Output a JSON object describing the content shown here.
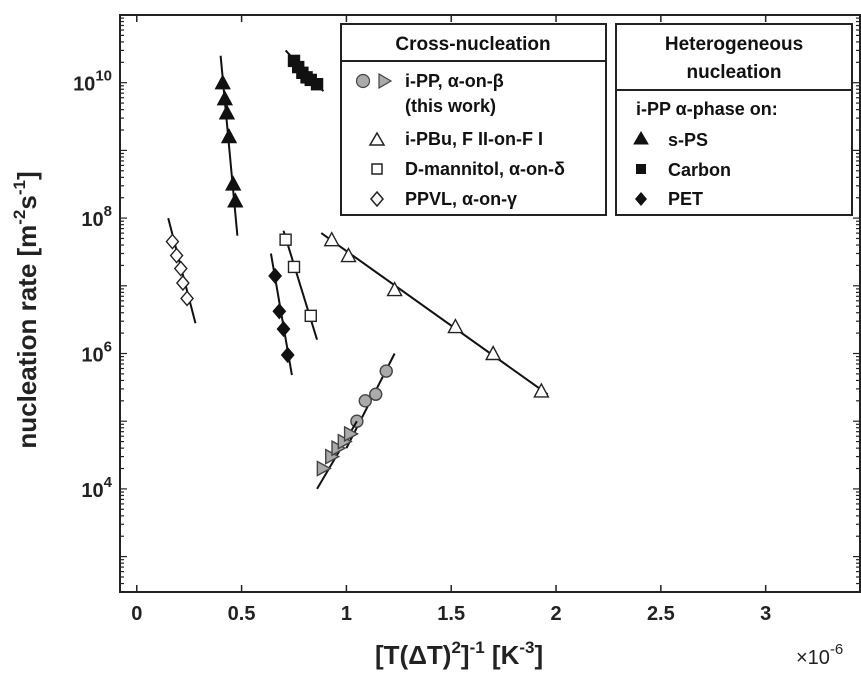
{
  "chart_data": {
    "type": "scatter",
    "x_scale": "linear",
    "y_scale": "log",
    "xlim": [
      -0.08,
      3.45
    ],
    "ylim": [
      300,
      100000000000
    ],
    "grid": false,
    "xlabel": "[T(ΔT)²]⁻¹ [K⁻³]",
    "xlabel_parts": {
      "main": "[T(ΔT)",
      "sup1": "2",
      "mid": "]",
      "sup2": "-1",
      "units": " [K",
      "sup3": "-3",
      "end": "]"
    },
    "x_multiplier": {
      "base": "×10",
      "exp": "-6"
    },
    "ylabel_parts": {
      "main": "nucleation rate [m",
      "sup1": "-2",
      "mid": "s",
      "sup2": "-1",
      "end": "]"
    },
    "x_ticks": [
      {
        "value": 0,
        "label": "0"
      },
      {
        "value": 0.5,
        "label": "0.5"
      },
      {
        "value": 1,
        "label": "1"
      },
      {
        "value": 1.5,
        "label": "1.5"
      },
      {
        "value": 2,
        "label": "2"
      },
      {
        "value": 2.5,
        "label": "2.5"
      },
      {
        "value": 3,
        "label": "3"
      }
    ],
    "y_ticks": [
      {
        "value": 10000,
        "base": "10",
        "exp": "4"
      },
      {
        "value": 1000000,
        "base": "10",
        "exp": "6"
      },
      {
        "value": 100000000,
        "base": "10",
        "exp": "8"
      },
      {
        "value": 10000000000,
        "base": "10",
        "exp": "10"
      }
    ],
    "series": [
      {
        "name": "i-PP, α-on-β (this work)",
        "group": "Cross-nucleation",
        "marker": "circle",
        "fill": "#aaaaaa",
        "x": [
          1.05,
          1.09,
          1.14,
          1.19
        ],
        "y": [
          100000,
          200000,
          250000,
          550000
        ],
        "fit": {
          "x": [
            1.0,
            1.23
          ],
          "y": [
            40000,
            1000000
          ]
        }
      },
      {
        "name": "i-PP, α-on-β (this work)",
        "group": "Cross-nucleation",
        "marker": "triangle-right",
        "fill": "#aaaaaa",
        "x": [
          0.89,
          0.93,
          0.96,
          0.99,
          1.02
        ],
        "y": [
          20000,
          30000,
          40000,
          50000,
          65000
        ],
        "fit": {
          "x": [
            0.86,
            1.05
          ],
          "y": [
            10000,
            100000
          ]
        }
      },
      {
        "name": "i-PBu, F II-on-F I",
        "group": "Cross-nucleation",
        "marker": "triangle-up",
        "fill": "#ffffff",
        "x": [
          0.93,
          1.01,
          1.23,
          1.52,
          1.7,
          1.93
        ],
        "y": [
          48000000,
          28000000,
          8800000,
          2500000,
          1000000,
          280000
        ],
        "fit": {
          "x": [
            0.88,
            1.96
          ],
          "y": [
            60000000,
            250000
          ]
        }
      },
      {
        "name": "D-mannitol, α-on-δ",
        "group": "Cross-nucleation",
        "marker": "square",
        "fill": "#ffffff",
        "x": [
          0.71,
          0.75,
          0.83
        ],
        "y": [
          48000000,
          19000000,
          3600000
        ],
        "fit": {
          "x": [
            0.7,
            0.86
          ],
          "y": [
            65000000,
            1600000
          ]
        }
      },
      {
        "name": "PPVL, α-on-γ",
        "group": "Cross-nucleation",
        "marker": "diamond",
        "fill": "#ffffff",
        "x": [
          0.17,
          0.19,
          0.21,
          0.22,
          0.24
        ],
        "y": [
          45000000,
          28000000,
          18000000,
          11000000,
          6500000
        ],
        "fit": {
          "x": [
            0.15,
            0.28
          ],
          "y": [
            100000000,
            2800000
          ]
        }
      },
      {
        "name": "s-PS",
        "group": "Heterogeneous nucleation",
        "marker": "triangle-up",
        "fill": "#111111",
        "x": [
          0.41,
          0.42,
          0.43,
          0.44,
          0.46,
          0.47
        ],
        "y": [
          10000000000,
          5800000000,
          3600000000,
          1600000000,
          320000000,
          180000000
        ],
        "fit": {
          "x": [
            0.4,
            0.48
          ],
          "y": [
            25000000000,
            55000000
          ]
        }
      },
      {
        "name": "Carbon",
        "group": "Heterogeneous nucleation",
        "marker": "square",
        "fill": "#111111",
        "x": [
          0.75,
          0.77,
          0.79,
          0.81,
          0.83,
          0.86
        ],
        "y": [
          21000000000,
          17000000000,
          14000000000,
          12000000000,
          11000000000,
          9500000000
        ],
        "fit": {
          "x": [
            0.71,
            0.89
          ],
          "y": [
            30000000000,
            7500000000
          ]
        }
      },
      {
        "name": "PET",
        "group": "Heterogeneous nucleation",
        "marker": "diamond",
        "fill": "#111111",
        "x": [
          0.66,
          0.68,
          0.7,
          0.72
        ],
        "y": [
          14000000,
          4200000,
          2300000,
          950000
        ],
        "fit": {
          "x": [
            0.64,
            0.74
          ],
          "y": [
            30000000,
            480000
          ]
        }
      }
    ],
    "legend": {
      "placement": "top-right",
      "box1": {
        "title": "Cross-nucleation",
        "entries": [
          {
            "text": "i-PP, α-on-β",
            "markers": [
              "circle-gray",
              "triangle-right-gray"
            ]
          },
          {
            "text": "(this work)",
            "markers": []
          },
          {
            "text": "i-PBu, F II-on-F I",
            "markers": [
              "triangle-up-open"
            ]
          },
          {
            "text": "D-mannitol, α-on-δ",
            "markers": [
              "square-open"
            ]
          },
          {
            "text": "PPVL, α-on-γ",
            "markers": [
              "diamond-open"
            ]
          }
        ]
      },
      "box2": {
        "title_line1": "Heterogeneous",
        "title_line2": "nucleation",
        "subtitle": "i-PP α-phase on:",
        "entries": [
          {
            "text": "s-PS",
            "markers": [
              "triangle-up-filled"
            ]
          },
          {
            "text": "Carbon",
            "markers": [
              "square-filled"
            ]
          },
          {
            "text": "PET",
            "markers": [
              "diamond-filled"
            ]
          }
        ]
      }
    }
  }
}
